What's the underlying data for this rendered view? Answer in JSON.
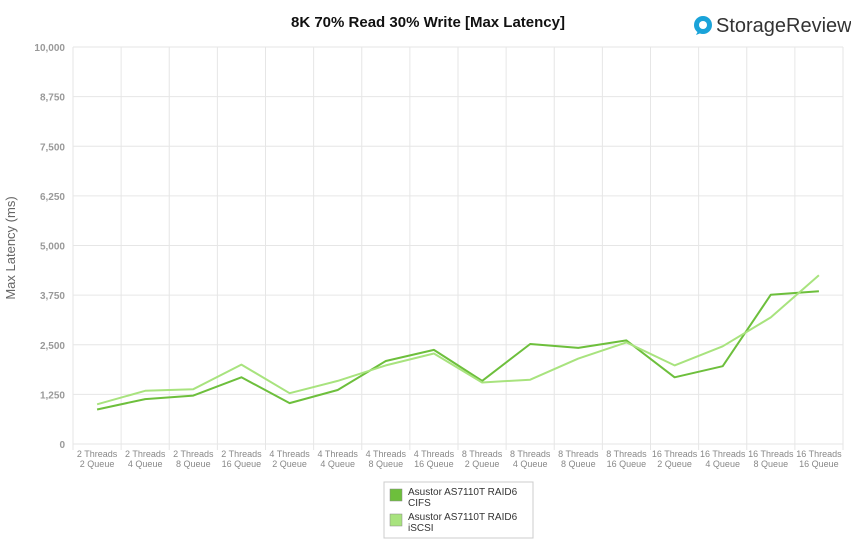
{
  "brand": {
    "name": "StorageReview",
    "logo_icon": "storagereview-logo-icon",
    "accent": "#1aa3d9"
  },
  "chart_data": {
    "type": "line",
    "title": "8K 70% Read 30% Write [Max Latency]",
    "xlabel": "",
    "ylabel": "Max Latency (ms)",
    "ylim": [
      0,
      10000
    ],
    "yticks": [
      0,
      1250,
      2500,
      3750,
      5000,
      6250,
      7500,
      8750,
      10000
    ],
    "ytick_labels": [
      "0",
      "1,250",
      "2,500",
      "3,750",
      "5,000",
      "6,250",
      "7,500",
      "8,750",
      "10,000"
    ],
    "grid": true,
    "legend_position": "bottom-center",
    "categories": [
      [
        "2 Threads",
        "2 Queue"
      ],
      [
        "2 Threads",
        "4 Queue"
      ],
      [
        "2 Threads",
        "8 Queue"
      ],
      [
        "2 Threads",
        "16 Queue"
      ],
      [
        "4 Threads",
        "2 Queue"
      ],
      [
        "4 Threads",
        "4 Queue"
      ],
      [
        "4 Threads",
        "8 Queue"
      ],
      [
        "4 Threads",
        "16 Queue"
      ],
      [
        "8 Threads",
        "2 Queue"
      ],
      [
        "8 Threads",
        "4 Queue"
      ],
      [
        "8 Threads",
        "8 Queue"
      ],
      [
        "8 Threads",
        "16 Queue"
      ],
      [
        "16 Threads",
        "2 Queue"
      ],
      [
        "16 Threads",
        "4 Queue"
      ],
      [
        "16 Threads",
        "8 Queue"
      ],
      [
        "16 Threads",
        "16 Queue"
      ]
    ],
    "series": [
      {
        "name": [
          "Asustor AS7110T RAID6",
          "CIFS"
        ],
        "color": "#6dbf3c",
        "values": [
          870,
          1130,
          1220,
          1680,
          1030,
          1360,
          2090,
          2370,
          1590,
          2520,
          2420,
          2610,
          1680,
          1960,
          3760,
          3850
        ]
      },
      {
        "name": [
          "Asustor AS7110T RAID6",
          "iSCSI"
        ],
        "color": "#a8e37e",
        "values": [
          1000,
          1340,
          1380,
          2000,
          1280,
          1590,
          1980,
          2280,
          1550,
          1620,
          2150,
          2560,
          1980,
          2460,
          3190,
          4250
        ]
      }
    ]
  }
}
